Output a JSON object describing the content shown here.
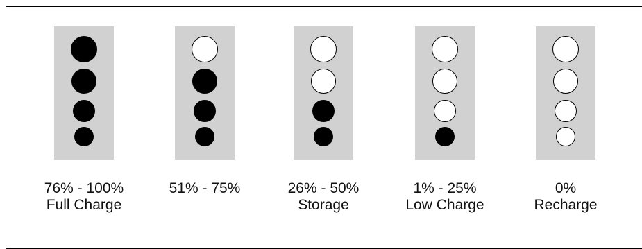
{
  "colors": {
    "panel": "#d1d1d1",
    "led_on": "#000000",
    "led_off": "#ffffff"
  },
  "indicators": [
    {
      "range": "76% - 100%",
      "status": "Full Charge",
      "leds_on": 4
    },
    {
      "range": "51% - 75%",
      "status": "",
      "leds_on": 3
    },
    {
      "range": "26% - 50%",
      "status": "Storage",
      "leds_on": 2
    },
    {
      "range": "1% - 25%",
      "status": "Low Charge",
      "leds_on": 1
    },
    {
      "range": "0%",
      "status": "Recharge",
      "leds_on": 0
    }
  ]
}
